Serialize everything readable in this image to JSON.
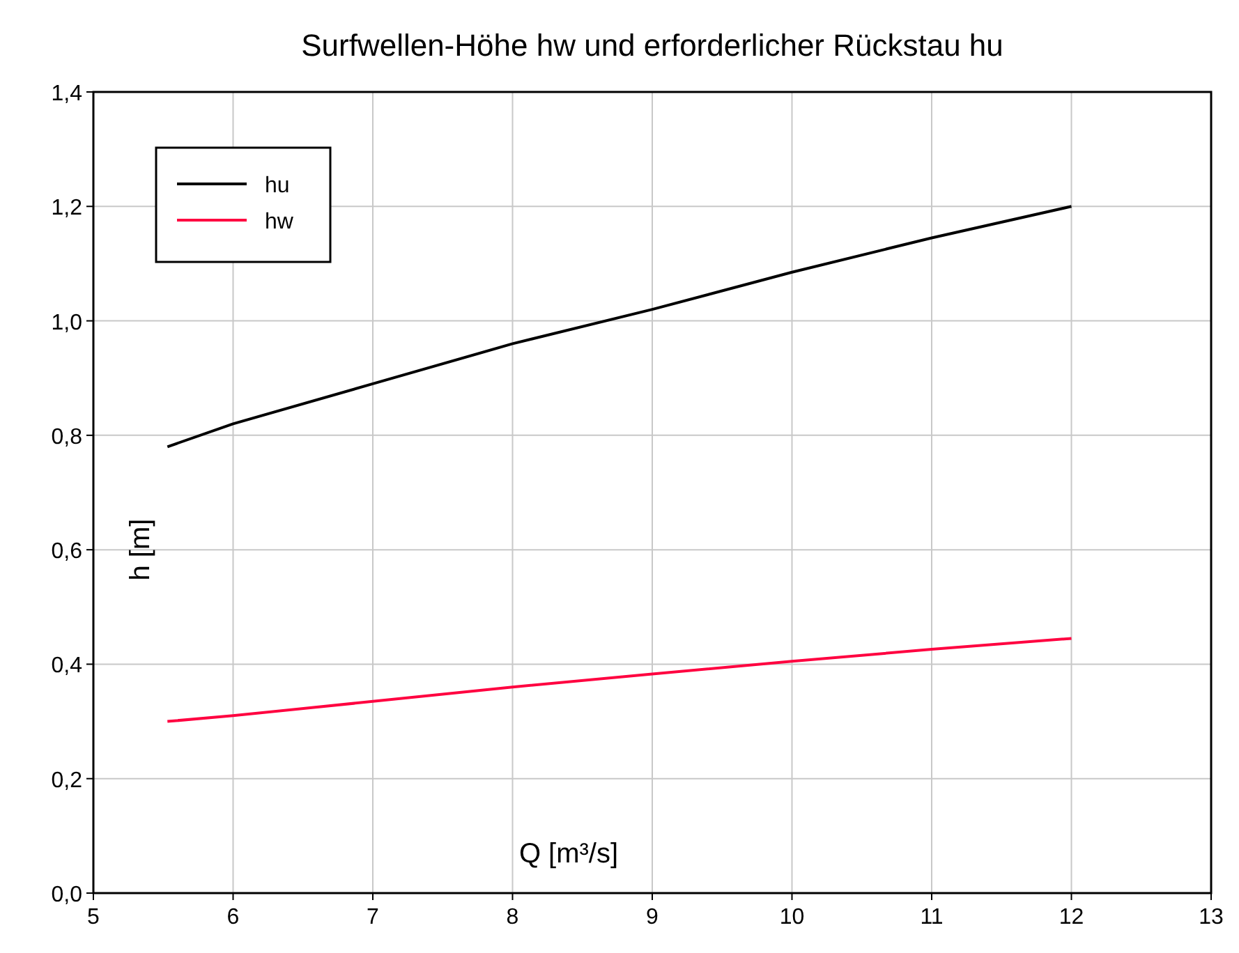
{
  "chart_data": {
    "type": "line",
    "title": "Surfwellen-Höhe hw und erforderlicher Rückstau hu",
    "xlabel": "Q [m³/s]",
    "ylabel": "h [m]",
    "x": [
      5.53,
      6,
      7,
      8,
      9,
      10,
      11,
      12
    ],
    "series": [
      {
        "name": "hu",
        "color": "#000000",
        "values": [
          0.78,
          0.82,
          0.89,
          0.96,
          1.02,
          1.085,
          1.145,
          1.2
        ]
      },
      {
        "name": "hw",
        "color": "#ff0040",
        "values": [
          0.3,
          0.31,
          0.335,
          0.36,
          0.383,
          0.405,
          0.426,
          0.445
        ]
      }
    ],
    "xlim": [
      5,
      13
    ],
    "xticks": [
      5,
      6,
      7,
      8,
      9,
      10,
      11,
      12,
      13
    ],
    "ylim": [
      0,
      1.4
    ],
    "yticks": [
      {
        "value": 0,
        "label": "0,0"
      },
      {
        "value": 0.2,
        "label": "0,2"
      },
      {
        "value": 0.4,
        "label": "0,4"
      },
      {
        "value": 0.6,
        "label": "0,6"
      },
      {
        "value": 0.8,
        "label": "0,8"
      },
      {
        "value": 1,
        "label": "1,0"
      },
      {
        "value": 1.2,
        "label": "1,2"
      },
      {
        "value": 1.4,
        "label": "1,4"
      }
    ],
    "grid": true,
    "legend": "top left",
    "marker": "none",
    "line_style": "solid"
  }
}
